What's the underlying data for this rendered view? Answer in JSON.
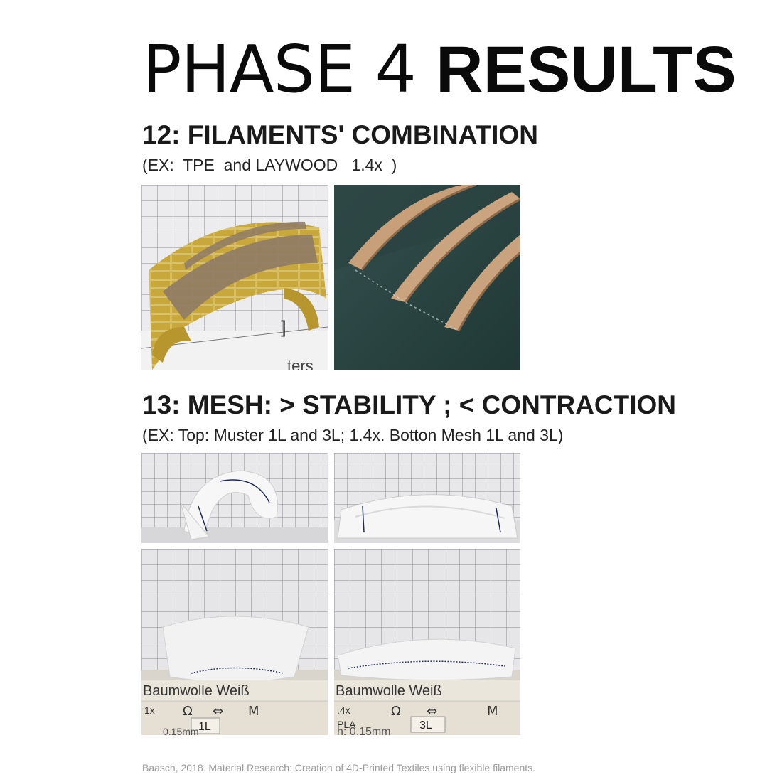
{
  "title": {
    "light": "PHASE 4 ",
    "bold": "RESULTS"
  },
  "section12": {
    "heading": "12: FILAMENTS' COMBINATION",
    "subheading": "(EX:  TPE  and LAYWOOD   1.4x  )"
  },
  "section13": {
    "heading": "13: MESH: > STABILITY ; < CONTRACTION",
    "subheading": "(EX: Top: Muster 1L and 3L; 1.4x. Botton Mesh 1L and 3L)"
  },
  "photo_labels": {
    "label_a": "Baumwolle Weiß",
    "label_b": "Baumwolle Weiß",
    "tag_1x": "1x",
    "tag_1l": "1L",
    "tag_14x": ".4x",
    "tag_pla": "PLA",
    "tag_3l": "3L",
    "tag_015": "h: 0,15mm",
    "tag_015_left": "0,15mm"
  },
  "citation": "Baasch, 2018. Material Research: Creation of 4D-Printed Textiles using flexible filaments.",
  "colors": {
    "grid_bg": "#e9e9ec",
    "grid_line": "#8a8a90",
    "mustard": "#c9a93a",
    "taupe": "#8f7a66",
    "dark_green": "#23413f",
    "wood": "#c9a27e"
  }
}
